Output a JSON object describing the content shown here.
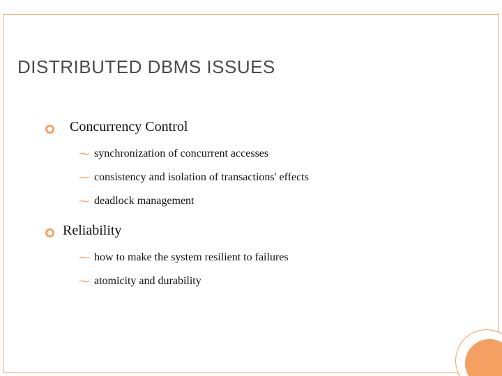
{
  "colors": {
    "accent": "#f4a062",
    "text": "#111111",
    "title_text": "#4a4a4a",
    "background": "#ffffff"
  },
  "typography": {
    "title_family": "Arial",
    "body_family": "Georgia",
    "title_size_pt": 26,
    "topic_size_pt": 20,
    "sub_size_pt": 16
  },
  "title": "DISTRIBUTED DBMS ISSUES",
  "topics": [
    {
      "label": "Concurrency Control",
      "subs": [
        "synchronization of concurrent accesses",
        "consistency and isolation of transactions' effects",
        "deadlock management"
      ]
    },
    {
      "label": "Reliability",
      "subs": [
        "how to make the system resilient to failures",
        "atomicity and durability"
      ]
    }
  ],
  "bullets": {
    "topic_glyph": "ring",
    "sub_glyph": "tilde"
  }
}
